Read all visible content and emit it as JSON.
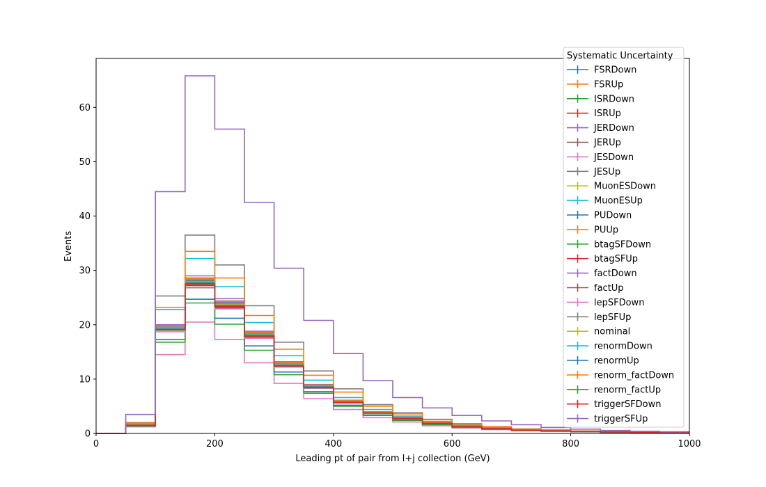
{
  "chart_data": {
    "type": "histogram-step",
    "title": "",
    "xlabel": "Leading pt of pair from l+j collection (GeV)",
    "ylabel": "Events",
    "xlim": [
      0,
      1000
    ],
    "ylim": [
      0,
      69
    ],
    "x_ticks": [
      0,
      200,
      400,
      600,
      800,
      1000
    ],
    "y_ticks": [
      0,
      10,
      20,
      30,
      40,
      50,
      60
    ],
    "grid": false,
    "legend": {
      "title": "Systematic Uncertainty",
      "placement": "upper-right"
    },
    "bin_edges": [
      0,
      50,
      100,
      150,
      200,
      250,
      300,
      350,
      400,
      450,
      500,
      550,
      600,
      650,
      700,
      750,
      800,
      850,
      900,
      950,
      1000
    ],
    "series": [
      {
        "name": "FSRDown",
        "color": "#1f77b4",
        "values": [
          0,
          1.5,
          19.0,
          27.5,
          23.5,
          18.0,
          12.5,
          8.5,
          5.8,
          3.8,
          2.8,
          1.9,
          1.3,
          0.9,
          0.6,
          0.5,
          0.35,
          0.25,
          0.2,
          0.15
        ]
      },
      {
        "name": "FSRUp",
        "color": "#ff7f0e",
        "values": [
          0,
          1.6,
          19.5,
          28.0,
          23.8,
          18.3,
          12.8,
          8.7,
          5.9,
          3.9,
          2.9,
          2.0,
          1.35,
          0.95,
          0.65,
          0.5,
          0.35,
          0.25,
          0.2,
          0.15
        ]
      },
      {
        "name": "ISRDown",
        "color": "#2ca02c",
        "values": [
          0,
          1.5,
          19.2,
          27.8,
          23.6,
          18.1,
          12.6,
          8.6,
          5.8,
          3.8,
          2.8,
          1.9,
          1.3,
          0.9,
          0.6,
          0.5,
          0.35,
          0.25,
          0.2,
          0.15
        ]
      },
      {
        "name": "ISRUp",
        "color": "#d62728",
        "values": [
          0,
          1.5,
          19.3,
          27.2,
          23.2,
          17.9,
          12.4,
          8.5,
          5.7,
          3.7,
          2.7,
          1.9,
          1.3,
          0.9,
          0.6,
          0.45,
          0.35,
          0.25,
          0.2,
          0.15
        ]
      },
      {
        "name": "JERDown",
        "color": "#9467bd",
        "values": [
          0,
          1.6,
          20.0,
          29.0,
          24.8,
          18.8,
          13.2,
          9.0,
          6.1,
          4.0,
          3.0,
          2.0,
          1.4,
          0.95,
          0.65,
          0.5,
          0.35,
          0.25,
          0.2,
          0.15
        ]
      },
      {
        "name": "JERUp",
        "color": "#8c564b",
        "values": [
          0,
          1.5,
          19.0,
          26.8,
          23.0,
          17.6,
          12.2,
          8.3,
          5.6,
          3.7,
          2.7,
          1.8,
          1.25,
          0.85,
          0.6,
          0.45,
          0.33,
          0.24,
          0.18,
          0.14
        ]
      },
      {
        "name": "JESDown",
        "color": "#e377c2",
        "values": [
          0,
          1.2,
          14.5,
          20.5,
          17.3,
          13.0,
          9.2,
          6.4,
          4.4,
          2.9,
          2.1,
          1.4,
          1.0,
          0.7,
          0.5,
          0.38,
          0.28,
          0.2,
          0.15,
          0.12
        ]
      },
      {
        "name": "JESUp",
        "color": "#7f7f7f",
        "values": [
          0,
          2.0,
          25.3,
          36.5,
          31.0,
          23.5,
          16.8,
          11.5,
          8.2,
          5.3,
          3.8,
          2.6,
          1.8,
          1.25,
          0.85,
          0.65,
          0.45,
          0.33,
          0.25,
          0.2
        ]
      },
      {
        "name": "MuonESDown",
        "color": "#bcbd22",
        "values": [
          0,
          1.5,
          19.3,
          27.9,
          23.7,
          18.1,
          12.6,
          8.6,
          5.8,
          3.8,
          2.8,
          1.9,
          1.3,
          0.9,
          0.6,
          0.5,
          0.35,
          0.25,
          0.2,
          0.15
        ]
      },
      {
        "name": "MuonESUp",
        "color": "#17becf",
        "values": [
          0,
          1.8,
          22.8,
          32.2,
          27.0,
          20.4,
          14.3,
          9.8,
          6.6,
          4.4,
          3.2,
          2.2,
          1.5,
          1.05,
          0.7,
          0.55,
          0.4,
          0.28,
          0.22,
          0.17
        ]
      },
      {
        "name": "PUDown",
        "color": "#1f77b4",
        "values": [
          0,
          1.4,
          17.3,
          24.7,
          21.2,
          16.1,
          11.3,
          7.7,
          5.2,
          3.4,
          2.5,
          1.7,
          1.15,
          0.8,
          0.55,
          0.42,
          0.31,
          0.22,
          0.17,
          0.13
        ]
      },
      {
        "name": "PUUp",
        "color": "#ff7f0e",
        "values": [
          0,
          1.9,
          23.2,
          33.5,
          28.6,
          21.7,
          15.5,
          10.7,
          7.6,
          5.0,
          3.6,
          2.5,
          1.7,
          1.2,
          0.8,
          0.6,
          0.43,
          0.31,
          0.24,
          0.18
        ]
      },
      {
        "name": "btagSFDown",
        "color": "#2ca02c",
        "values": [
          0,
          1.3,
          16.8,
          24.0,
          20.1,
          15.3,
          10.8,
          7.4,
          5.0,
          3.3,
          2.4,
          1.6,
          1.1,
          0.78,
          0.53,
          0.4,
          0.3,
          0.21,
          0.16,
          0.12
        ]
      },
      {
        "name": "btagSFUp",
        "color": "#d62728",
        "values": [
          0,
          1.5,
          19.4,
          28.0,
          23.8,
          18.2,
          12.7,
          8.6,
          5.8,
          3.8,
          2.8,
          1.9,
          1.3,
          0.9,
          0.6,
          0.5,
          0.35,
          0.25,
          0.2,
          0.15
        ]
      },
      {
        "name": "factDown",
        "color": "#9467bd",
        "values": [
          0,
          1.5,
          19.6,
          28.3,
          24.1,
          18.4,
          12.9,
          8.8,
          5.9,
          3.9,
          2.9,
          2.0,
          1.35,
          0.95,
          0.65,
          0.5,
          0.35,
          0.25,
          0.2,
          0.15
        ]
      },
      {
        "name": "factUp",
        "color": "#8c564b",
        "values": [
          0,
          1.5,
          19.1,
          27.6,
          23.4,
          17.9,
          12.5,
          8.5,
          5.7,
          3.8,
          2.8,
          1.9,
          1.3,
          0.9,
          0.6,
          0.47,
          0.34,
          0.25,
          0.19,
          0.14
        ]
      },
      {
        "name": "lepSFDown",
        "color": "#e377c2",
        "values": [
          0,
          1.4,
          18.7,
          26.9,
          22.9,
          17.5,
          12.2,
          8.3,
          5.6,
          3.7,
          2.7,
          1.85,
          1.27,
          0.88,
          0.6,
          0.46,
          0.33,
          0.24,
          0.19,
          0.14
        ]
      },
      {
        "name": "lepSFUp",
        "color": "#7f7f7f",
        "values": [
          0,
          1.6,
          19.8,
          28.6,
          24.4,
          18.6,
          13.0,
          8.9,
          6.0,
          3.9,
          2.9,
          2.0,
          1.35,
          0.95,
          0.65,
          0.5,
          0.36,
          0.26,
          0.2,
          0.15
        ]
      },
      {
        "name": "nominal",
        "color": "#bcbd22",
        "values": [
          0,
          1.5,
          19.3,
          27.9,
          23.7,
          18.1,
          12.6,
          8.6,
          5.8,
          3.8,
          2.8,
          1.9,
          1.3,
          0.9,
          0.6,
          0.5,
          0.35,
          0.25,
          0.2,
          0.15
        ]
      },
      {
        "name": "renormDown",
        "color": "#17becf",
        "values": [
          0,
          1.5,
          19.5,
          28.2,
          23.9,
          18.3,
          12.8,
          8.7,
          5.9,
          3.9,
          2.85,
          1.95,
          1.32,
          0.92,
          0.62,
          0.5,
          0.35,
          0.25,
          0.2,
          0.15
        ]
      },
      {
        "name": "renormUp",
        "color": "#1f77b4",
        "values": [
          0,
          1.5,
          19.2,
          27.7,
          23.5,
          18.0,
          12.5,
          8.5,
          5.75,
          3.78,
          2.78,
          1.88,
          1.28,
          0.88,
          0.6,
          0.47,
          0.34,
          0.25,
          0.19,
          0.14
        ]
      },
      {
        "name": "renorm_factDown",
        "color": "#ff7f0e",
        "values": [
          0,
          1.6,
          19.8,
          28.5,
          24.3,
          18.6,
          13.0,
          8.9,
          6.0,
          3.95,
          2.9,
          2.0,
          1.35,
          0.95,
          0.65,
          0.5,
          0.36,
          0.26,
          0.2,
          0.15
        ]
      },
      {
        "name": "renorm_factUp",
        "color": "#2ca02c",
        "values": [
          0,
          1.5,
          19.0,
          27.4,
          23.3,
          17.8,
          12.4,
          8.4,
          5.7,
          3.75,
          2.75,
          1.87,
          1.27,
          0.87,
          0.59,
          0.46,
          0.33,
          0.24,
          0.19,
          0.14
        ]
      },
      {
        "name": "triggerSFDown",
        "color": "#d62728",
        "values": [
          0,
          1.5,
          19.1,
          27.5,
          23.4,
          17.9,
          12.4,
          8.5,
          5.7,
          3.75,
          2.76,
          1.88,
          1.28,
          0.88,
          0.6,
          0.47,
          0.34,
          0.25,
          0.19,
          0.14
        ]
      },
      {
        "name": "triggerSFUp",
        "color": "#9467bd",
        "values": [
          0,
          3.5,
          44.5,
          65.8,
          56.0,
          42.5,
          30.4,
          20.8,
          14.7,
          9.7,
          6.6,
          4.7,
          3.3,
          2.3,
          1.6,
          1.1,
          0.8,
          0.55,
          0.4,
          0.3
        ]
      }
    ]
  }
}
